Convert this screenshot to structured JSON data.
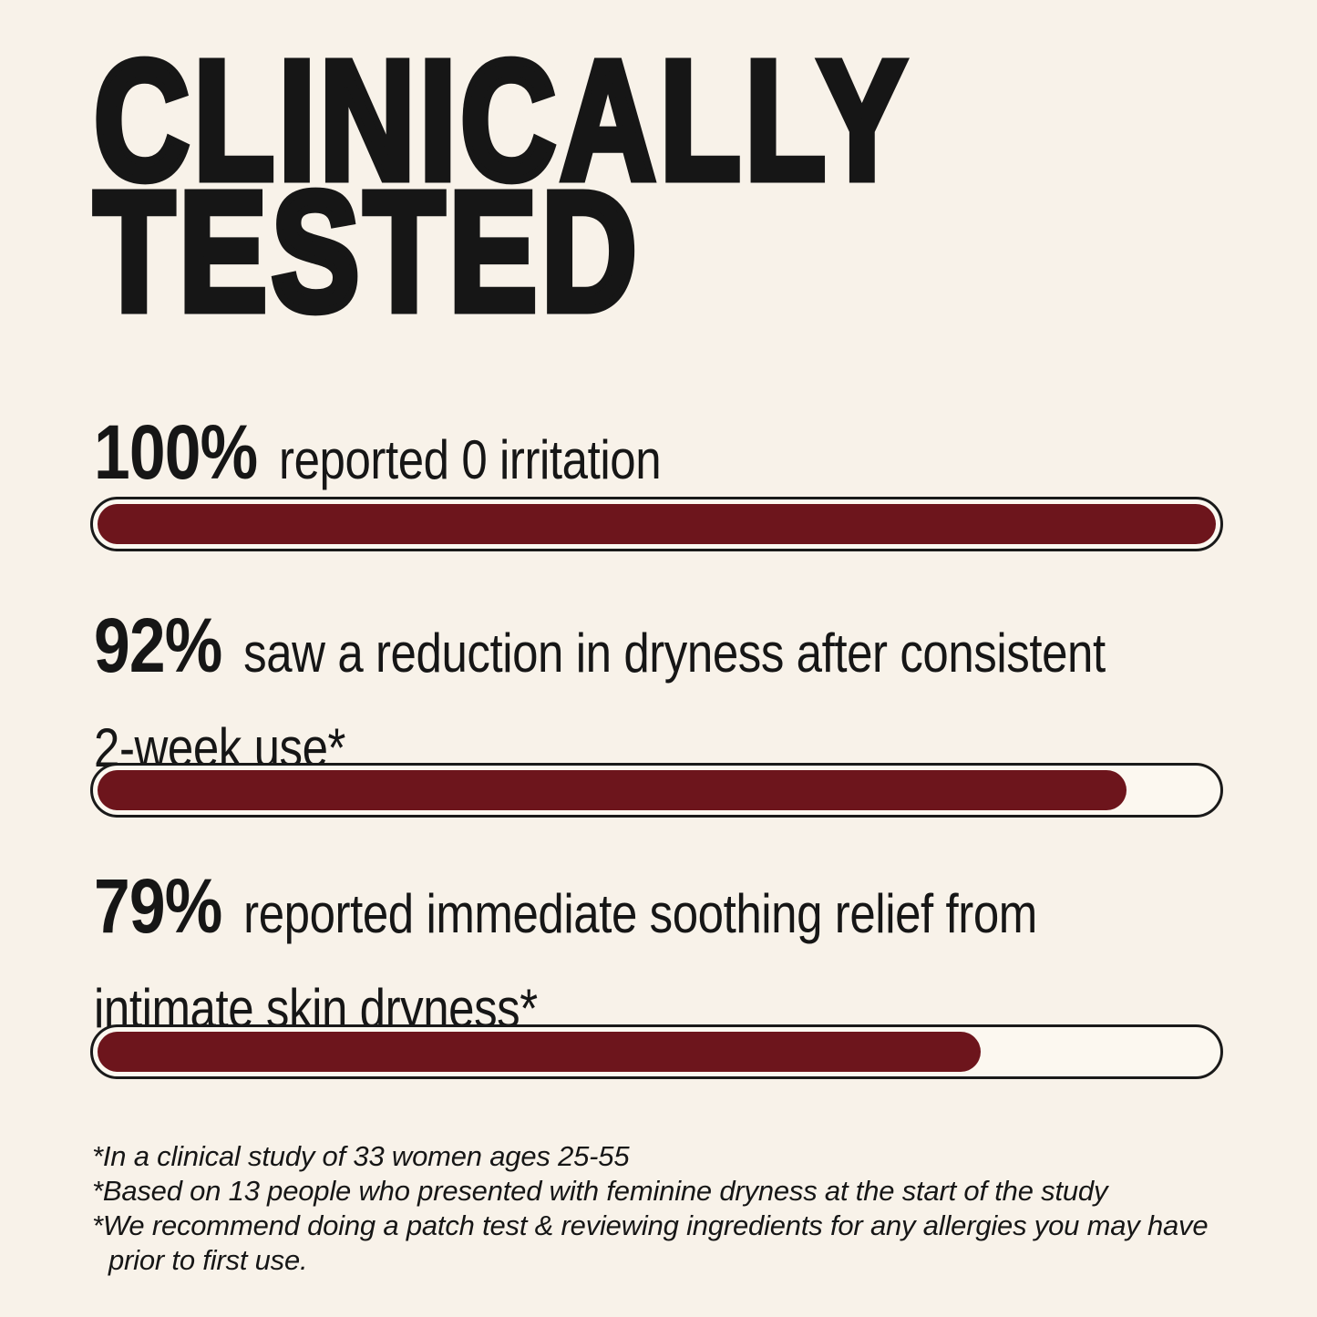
{
  "theme": {
    "background": "#f8f2e9",
    "text": "#161616",
    "bar_fill": "#6d151c",
    "bar_track": "#fcf8f0",
    "bar_border": "#1a1a1a"
  },
  "title": {
    "line1": "CLINICALLY",
    "line2": "TESTED"
  },
  "stats": [
    {
      "value": "100%",
      "percent": 100,
      "lines": [
        "reported 0 irritation"
      ]
    },
    {
      "value": "92%",
      "percent": 92,
      "lines": [
        "saw a reduction in dryness after consistent",
        "2-week use*"
      ]
    },
    {
      "value": "79%",
      "percent": 79,
      "lines": [
        "reported immediate soothing relief from",
        "intimate skin dryness*"
      ]
    }
  ],
  "footnotes": [
    "*In a clinical study of 33 women ages 25-55",
    "*Based on 13 people who presented with feminine dryness at the start of the study",
    "*We recommend doing a patch test & reviewing ingredients for any allergies you may have prior to first use."
  ],
  "chart_data": {
    "type": "bar",
    "orientation": "horizontal",
    "title": "CLINICALLY TESTED",
    "categories": [
      "reported 0 irritation",
      "saw a reduction in dryness after consistent 2-week use*",
      "reported immediate soothing relief from intimate skin dryness*"
    ],
    "values": [
      100,
      92,
      79
    ],
    "unit": "%",
    "xlim": [
      0,
      100
    ],
    "grid": false,
    "legend": false,
    "bar_color": "#6d151c"
  }
}
